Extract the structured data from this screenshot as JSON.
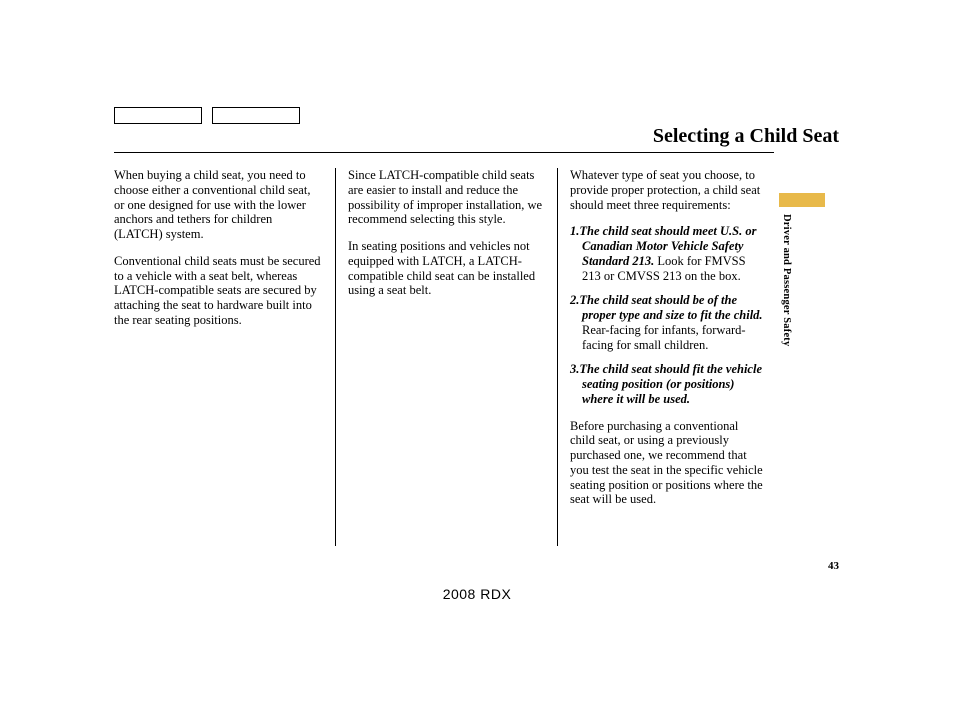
{
  "page": {
    "title": "Selecting a Child Seat",
    "pageNumber": "43",
    "footer": "2008  RDX",
    "sideLabel": "Driver and Passenger Safety",
    "accentColor": "#e8b94a",
    "textColor": "#000000",
    "background": "#ffffff"
  },
  "col1": {
    "p1": "When buying a child seat, you need to choose either a conventional child seat, or one designed for use with the lower anchors and tethers for children (LATCH) system.",
    "p2": "Conventional child seats must be secured to a vehicle with a seat belt, whereas LATCH-compatible seats are secured by attaching the seat to hardware built into the rear seating positions."
  },
  "col2": {
    "p1": "Since LATCH-compatible child seats are easier to install and reduce the possibility of improper installation, we recommend selecting this style.",
    "p2": "In seating positions and vehicles not equipped with LATCH, a LATCH-compatible child seat can be installed using a seat belt."
  },
  "col3": {
    "intro": "Whatever type of seat you choose, to provide proper protection, a child seat should meet three requirements:",
    "reqs": [
      {
        "num": "1.",
        "bold": "The child seat should meet U.S. or Canadian Motor Vehicle Safety Standard 213.",
        "rest": " Look for FMVSS 213 or CMVSS 213 on the box."
      },
      {
        "num": "2.",
        "bold": "The child seat should be of the proper type and size to fit the child.",
        "rest": " Rear-facing for infants, forward-facing for small children."
      },
      {
        "num": "3.",
        "bold": "The child seat should fit the vehicle seating position (or positions) where it will be used.",
        "rest": ""
      }
    ],
    "outro": "Before purchasing a conventional child seat, or using a previously purchased one, we recommend that you test the seat in the specific vehicle seating position or positions where the seat will be used."
  }
}
